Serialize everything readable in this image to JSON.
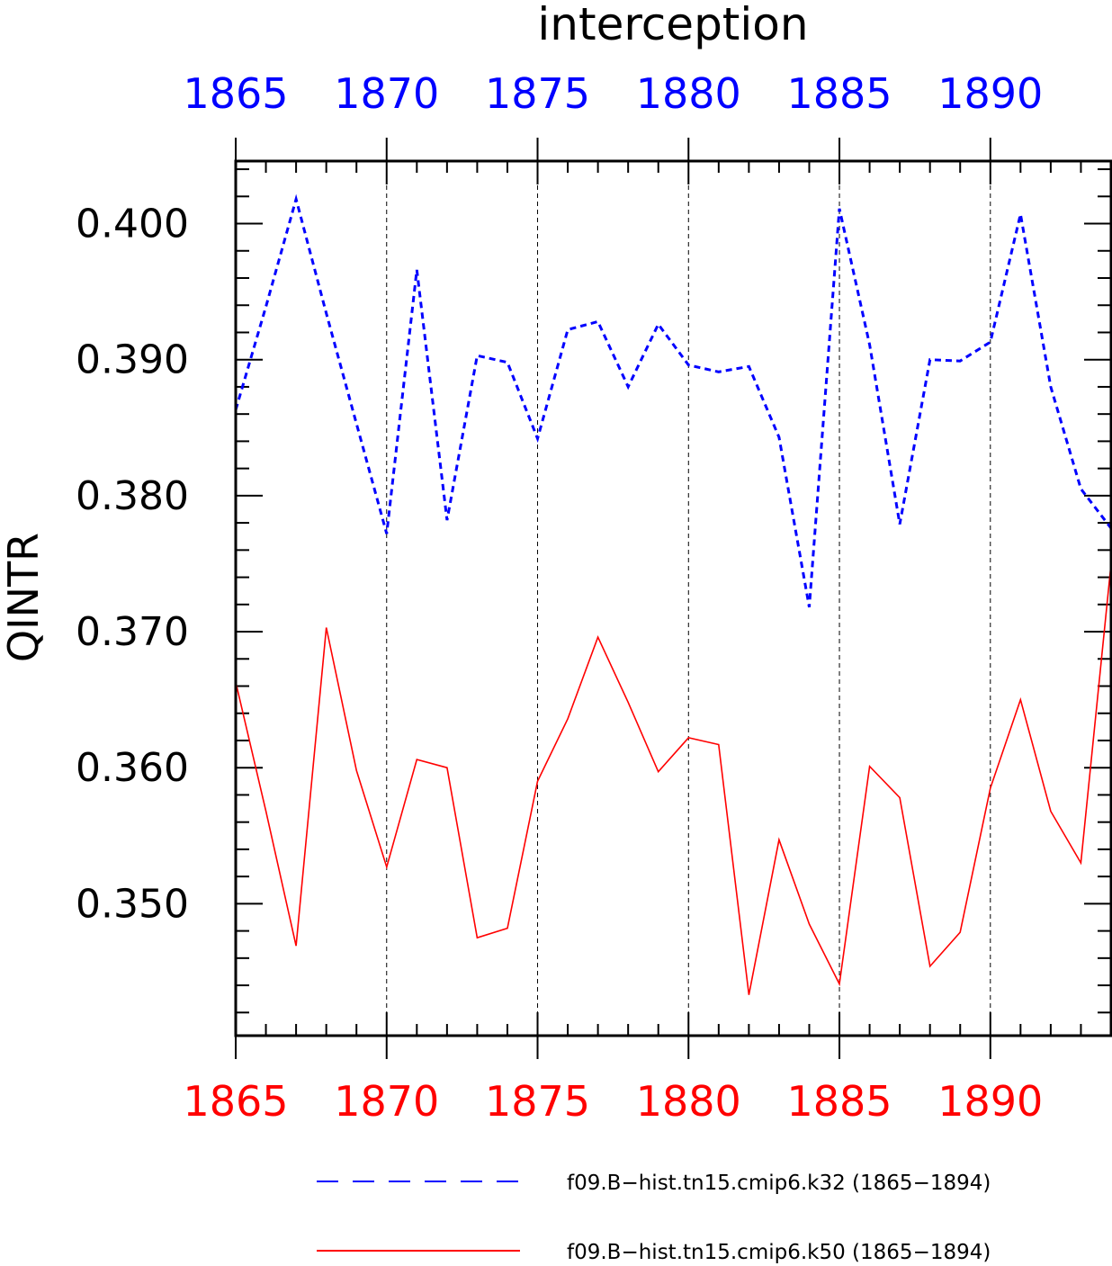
{
  "chart_data": {
    "type": "line",
    "title": "interception",
    "ylabel": "QINTR",
    "xlim": [
      1865,
      1894
    ],
    "ylim": [
      0.3403,
      0.4046
    ],
    "x_ticks": [
      1865,
      1870,
      1875,
      1880,
      1885,
      1890
    ],
    "x_tick_labels": [
      "1865",
      "1870",
      "1875",
      "1880",
      "1885",
      "1890"
    ],
    "y_ticks": [
      0.35,
      0.36,
      0.37,
      0.38,
      0.39,
      0.4
    ],
    "y_tick_labels": [
      "0.350",
      "0.360",
      "0.370",
      "0.380",
      "0.390",
      "0.400"
    ],
    "grid": "vertical dashed at major x ticks",
    "axis_colors": {
      "top": "#0000ff",
      "bottom": "#ff0000"
    },
    "legend_position": "bottom",
    "x": [
      1865,
      1866,
      1867,
      1868,
      1869,
      1870,
      1871,
      1872,
      1873,
      1874,
      1875,
      1876,
      1877,
      1878,
      1879,
      1880,
      1881,
      1882,
      1883,
      1884,
      1885,
      1886,
      1887,
      1888,
      1889,
      1890,
      1891,
      1892,
      1893,
      1894
    ],
    "series": [
      {
        "name": "f09.B−hist.tn15.cmip6.k32 (1865−1894)",
        "color": "#0000ff",
        "style": "dashed",
        "values": [
          0.3863,
          0.3939,
          0.4018,
          0.3934,
          0.3853,
          0.3772,
          0.3966,
          0.3782,
          0.3903,
          0.3898,
          0.3842,
          0.3922,
          0.3928,
          0.388,
          0.3926,
          0.3896,
          0.3891,
          0.3895,
          0.3843,
          0.3718,
          0.4011,
          0.3911,
          0.3779,
          0.39,
          0.3899,
          0.3913,
          0.4007,
          0.388,
          0.3805,
          0.3776
        ]
      },
      {
        "name": "f09.B−hist.tn15.cmip6.k50 (1865−1894)",
        "color": "#ff0000",
        "style": "solid",
        "values": [
          0.3663,
          0.3568,
          0.3469,
          0.3703,
          0.3598,
          0.3527,
          0.3606,
          0.36,
          0.3475,
          0.3482,
          0.359,
          0.3636,
          0.3696,
          0.3648,
          0.3597,
          0.3622,
          0.3617,
          0.3433,
          0.3547,
          0.3485,
          0.3441,
          0.3601,
          0.3578,
          0.3454,
          0.3479,
          0.3585,
          0.365,
          0.3568,
          0.353,
          0.375
        ]
      }
    ]
  }
}
